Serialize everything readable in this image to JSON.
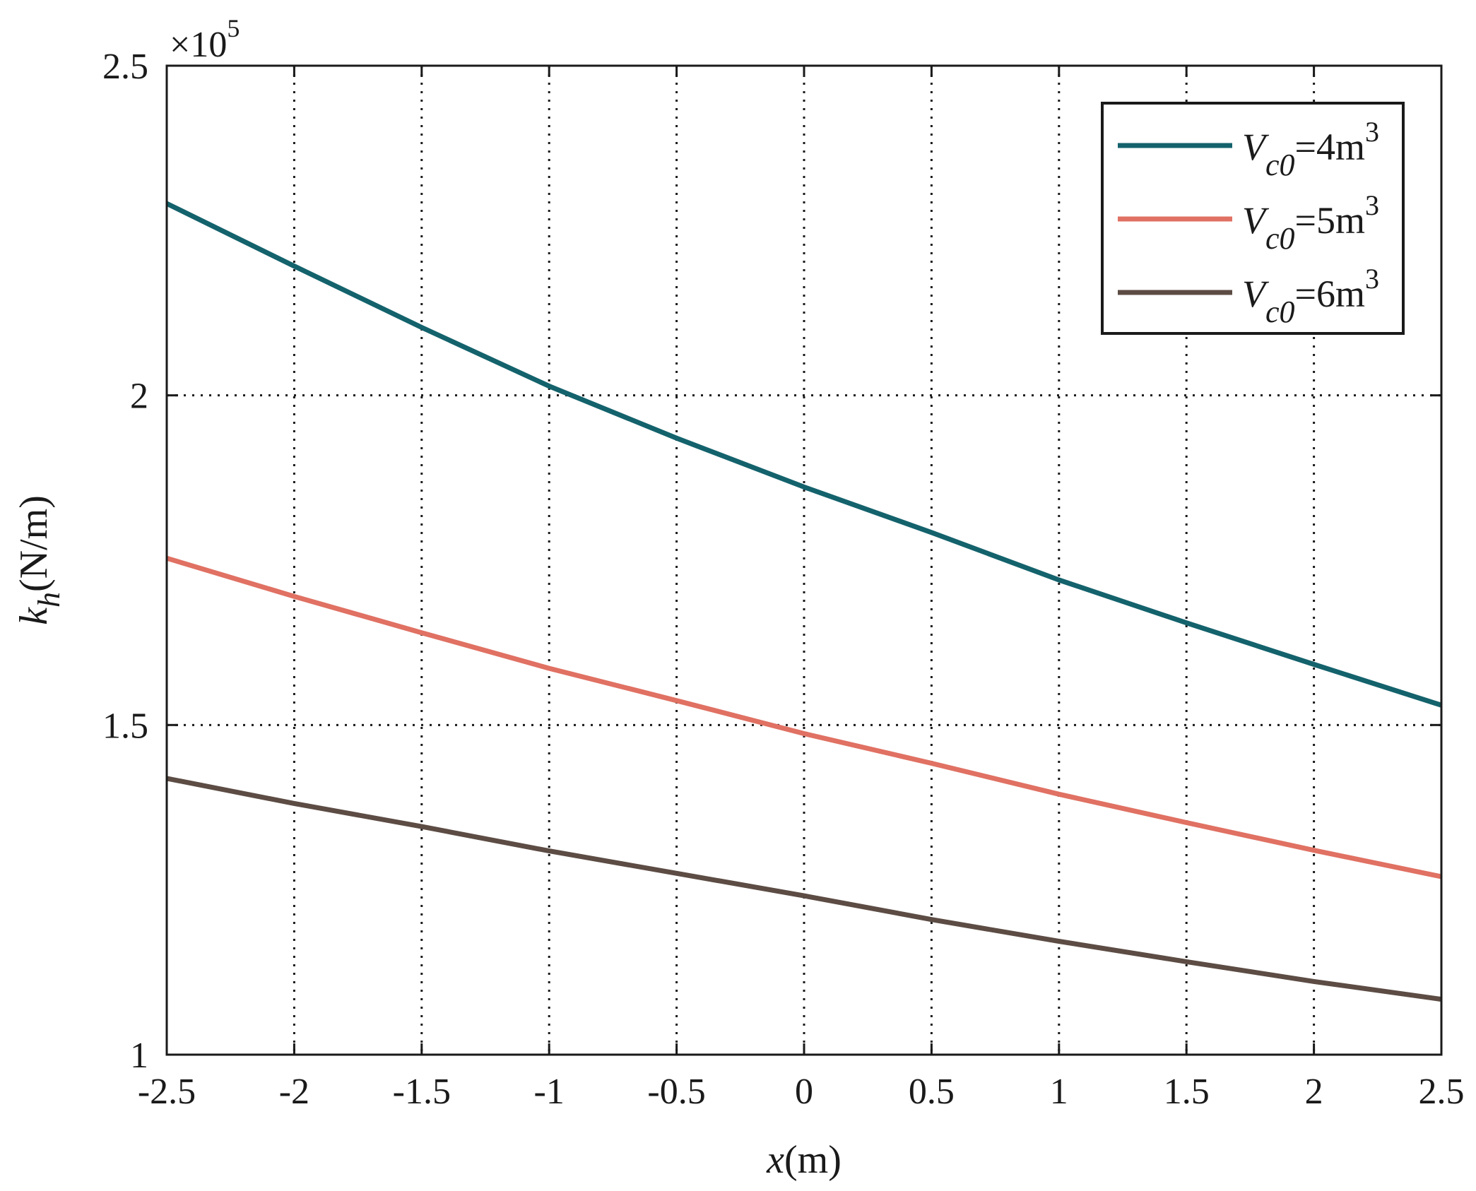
{
  "chart_data": {
    "type": "line",
    "title": "",
    "xlabel": {
      "var": "x",
      "unit": "(m)"
    },
    "ylabel": {
      "var": "k",
      "sub": "h",
      "unit": "(N/m)"
    },
    "exponent_label": {
      "prefix": "×10",
      "power": "5"
    },
    "xlim": [
      -2.5,
      2.5
    ],
    "ylim": [
      1.0,
      2.5
    ],
    "xticks": [
      -2.5,
      -2,
      -1.5,
      -1,
      -0.5,
      0,
      0.5,
      1,
      1.5,
      2,
      2.5
    ],
    "xtick_labels": [
      "-2.5",
      "-2",
      "-1.5",
      "-1",
      "-0.5",
      "0",
      "0.5",
      "1",
      "1.5",
      "2",
      "2.5"
    ],
    "yticks": [
      1,
      1.5,
      2,
      2.5
    ],
    "ytick_labels": [
      "1",
      "1.5",
      "2",
      "2.5"
    ],
    "grid": true,
    "legend_position": "top-right",
    "x": [
      -2.5,
      -2,
      -1.5,
      -1,
      -0.5,
      0,
      0.5,
      1,
      1.5,
      2,
      2.5
    ],
    "series": [
      {
        "name": "V_c0=4m^3",
        "legend": {
          "var": "V",
          "sub": "c0",
          "eq": "=4m",
          "sup": "3"
        },
        "color": "#13626c",
        "values": [
          2.291,
          2.196,
          2.103,
          2.014,
          1.935,
          1.861,
          1.792,
          1.72,
          1.655,
          1.592,
          1.53
        ]
      },
      {
        "name": "V_c0=5m^3",
        "legend": {
          "var": "V",
          "sub": "c0",
          "eq": "=5m",
          "sup": "3"
        },
        "color": "#e07163",
        "values": [
          1.753,
          1.695,
          1.64,
          1.586,
          1.537,
          1.487,
          1.442,
          1.395,
          1.352,
          1.31,
          1.27
        ]
      },
      {
        "name": "V_c0=6m^3",
        "legend": {
          "var": "V",
          "sub": "c0",
          "eq": "=6m",
          "sup": "3"
        },
        "color": "#5c4c44",
        "values": [
          1.419,
          1.381,
          1.346,
          1.309,
          1.275,
          1.241,
          1.205,
          1.172,
          1.141,
          1.111,
          1.084
        ]
      }
    ]
  }
}
